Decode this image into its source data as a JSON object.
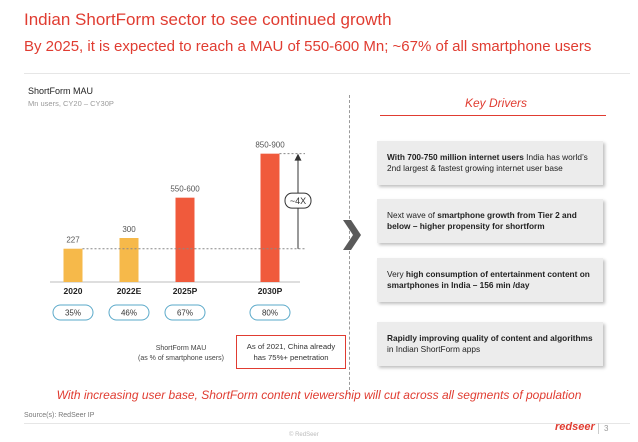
{
  "header": {
    "title": "Indian ShortForm sector to see continued growth",
    "subtitle": "By 2025, it is expected to reach a MAU of 550-600 Mn; ~67% of all smartphone users"
  },
  "chart_panel": {
    "title": "ShortForm MAU",
    "subtitle": "Mn users, CY20 – CY30P",
    "growth_label": "~4X",
    "penetration_caption_line1": "ShortForm MAU",
    "penetration_caption_line2": "(as % of smartphone users)",
    "note_line1": "As of 2021, China already",
    "note_line2": "has 75%+ penetration"
  },
  "chart_data": {
    "type": "bar",
    "title": "ShortForm MAU",
    "ylabel": "Mn users, CY20 – CY30P",
    "categories": [
      "2020",
      "2022E",
      "2025P",
      "2030P"
    ],
    "values": [
      227,
      300,
      575,
      875
    ],
    "value_labels": [
      "227",
      "300",
      "550-600",
      "850-900"
    ],
    "penetration": [
      "35%",
      "46%",
      "67%",
      "80%"
    ],
    "colors": [
      "#f6b94a",
      "#f6b94a",
      "#f05a3c",
      "#f05a3c"
    ],
    "ylim": [
      0,
      900
    ],
    "grid": false,
    "legend": "none"
  },
  "key_drivers": {
    "title": "Key Drivers",
    "items": [
      {
        "parts": [
          {
            "t": "With 700-750 million internet users",
            "b": true
          },
          {
            "t": " India has world’s 2nd largest & fastest growing internet user base",
            "b": false
          }
        ]
      },
      {
        "parts": [
          {
            "t": "Next wave of ",
            "b": false
          },
          {
            "t": "smartphone growth from Tier 2 and below – higher propensity for shortform",
            "b": true
          }
        ]
      },
      {
        "parts": [
          {
            "t": "Very ",
            "b": false
          },
          {
            "t": "high consumption of entertainment content on smartphones in India – 156 min /day",
            "b": true
          }
        ]
      },
      {
        "parts": [
          {
            "t": "Rapidly improving quality of content and algorithms",
            "b": true
          },
          {
            "t": " in Indian ShortForm apps",
            "b": false
          }
        ]
      }
    ]
  },
  "footer": {
    "conclusion": "With increasing user base, ShortForm content viewership will cut across all segments of population",
    "source": "Source(s): RedSeer IP",
    "copyright": "© RedSeer",
    "logo": "redseer",
    "page_number": "3"
  }
}
